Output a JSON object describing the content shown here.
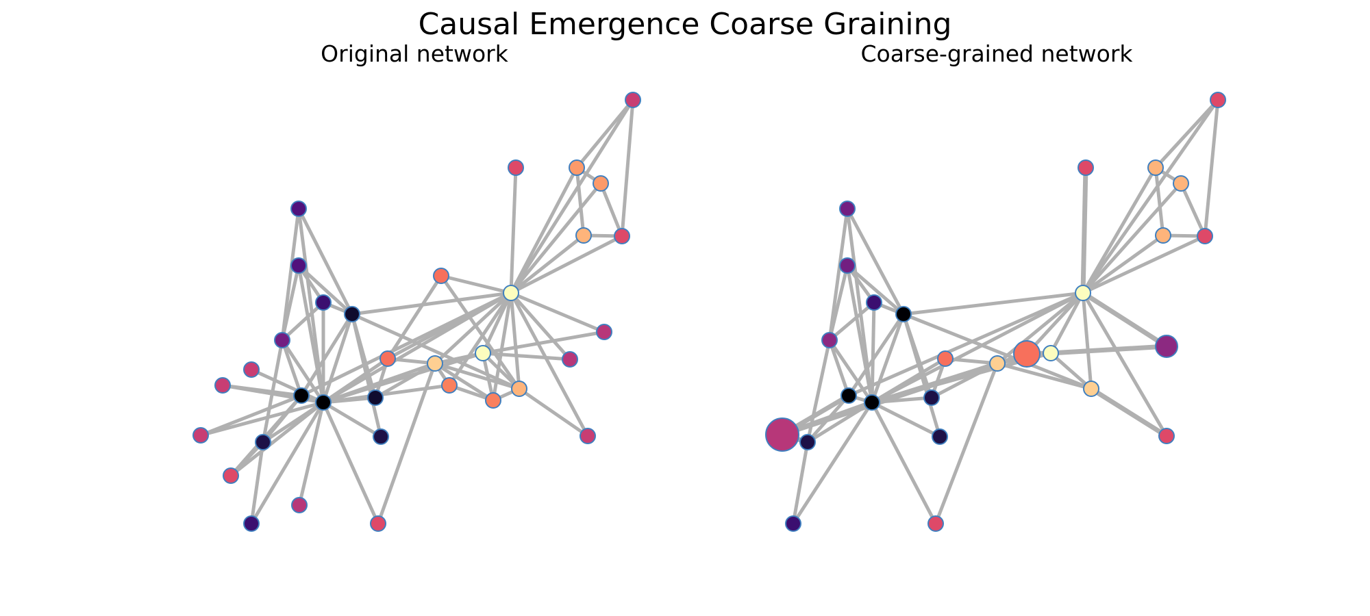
{
  "figure": {
    "title": "Causal Emergence Coarse Graining"
  },
  "panels": [
    {
      "title": "Original network",
      "node_colors": [
        "#000004",
        "#0f0b2e",
        "#1d1147",
        "#3b0f70",
        "#51127c",
        "#721f81",
        "#8c2981",
        "#b73779",
        "#c83e73",
        "#de4968",
        "#f7705c",
        "#f9805e",
        "#fd9a6a",
        "#feb47b",
        "#fecf92",
        "#fcfdbf"
      ],
      "edge_color": "#b0b0b0"
    },
    {
      "title": "Coarse-grained network",
      "node_colors": [
        "#000004",
        "#1d1147",
        "#3b0f70",
        "#721f81",
        "#8c2981",
        "#b73779",
        "#de4968",
        "#f7705c",
        "#feb47b",
        "#fecf92",
        "#fcfdbf"
      ],
      "edge_color": "#b0b0b0"
    }
  ]
}
